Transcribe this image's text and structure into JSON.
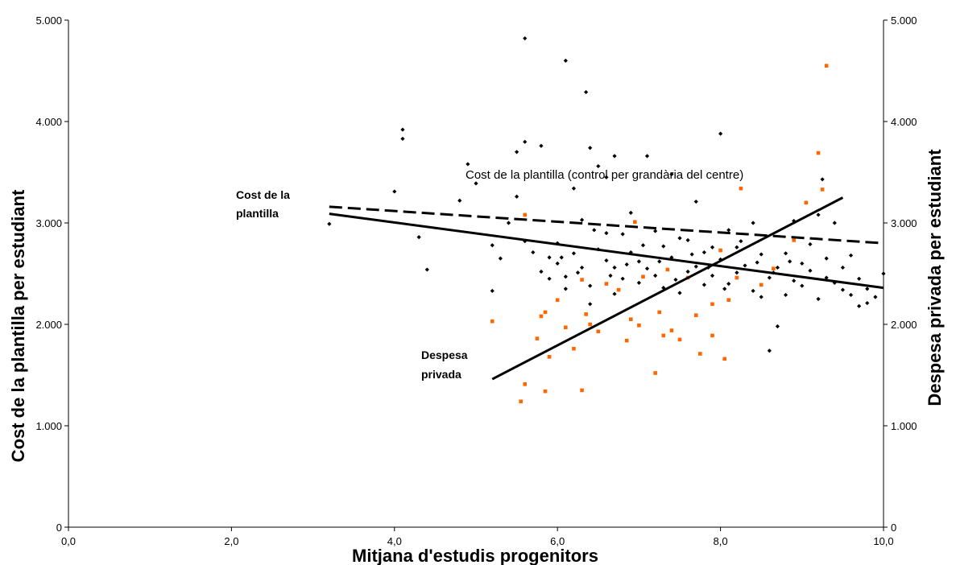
{
  "chart_data": {
    "type": "scatter",
    "title": "",
    "xlabel": "Mitjana d'estudis progenitors",
    "ylabel_left": "Cost de la plantilla per estudiant",
    "ylabel_right": "Despesa privada per estudiant",
    "xlim": [
      0,
      10
    ],
    "ylim": [
      0,
      5000
    ],
    "x_ticks": [
      "0,0",
      "2,0",
      "4,0",
      "6,0",
      "8,0",
      "10,0"
    ],
    "y_ticks_left": [
      "0",
      "1.000",
      "2.000",
      "3.000",
      "4.000",
      "5.000"
    ],
    "y_ticks_right": [
      "0",
      "1.000",
      "2.000",
      "3.000",
      "4.000",
      "5.000"
    ],
    "grid": false,
    "colors": {
      "staff_points": "#000000",
      "private_points": "#ff6600",
      "lines": "#000000"
    },
    "annotations": {
      "staff_line": [
        "Cost de la",
        "plantilla"
      ],
      "private_line": [
        "Despesa",
        "privada"
      ],
      "dashed_line": "Cost de la plantilla (control per grandària del centre)"
    },
    "series": [
      {
        "kind": "scatter",
        "marker": "diamond",
        "color": "#000000",
        "points": [
          [
            3.2,
            2990
          ],
          [
            4.0,
            3310
          ],
          [
            4.1,
            3920
          ],
          [
            4.1,
            3830
          ],
          [
            4.3,
            2860
          ],
          [
            4.4,
            2540
          ],
          [
            4.8,
            3220
          ],
          [
            4.9,
            3580
          ],
          [
            5.0,
            3390
          ],
          [
            5.2,
            2780
          ],
          [
            5.2,
            2330
          ],
          [
            5.3,
            2650
          ],
          [
            5.4,
            3000
          ],
          [
            5.5,
            3260
          ],
          [
            5.5,
            3700
          ],
          [
            5.6,
            3800
          ],
          [
            5.6,
            4820
          ],
          [
            5.6,
            2820
          ],
          [
            5.7,
            2710
          ],
          [
            5.8,
            3760
          ],
          [
            5.8,
            2520
          ],
          [
            5.9,
            2660
          ],
          [
            6.0,
            2600
          ],
          [
            6.1,
            4600
          ],
          [
            6.1,
            2470
          ],
          [
            6.2,
            3340
          ],
          [
            6.3,
            3030
          ],
          [
            6.35,
            4290
          ],
          [
            6.4,
            3740
          ],
          [
            6.4,
            2200
          ],
          [
            6.5,
            3560
          ],
          [
            6.6,
            3450
          ],
          [
            6.6,
            2900
          ],
          [
            6.7,
            3660
          ],
          [
            6.7,
            2560
          ],
          [
            6.8,
            2450
          ],
          [
            6.9,
            3100
          ],
          [
            7.0,
            2620
          ],
          [
            7.1,
            3660
          ],
          [
            7.2,
            2480
          ],
          [
            7.3,
            2770
          ],
          [
            7.4,
            3480
          ],
          [
            7.5,
            2850
          ],
          [
            7.6,
            2520
          ],
          [
            7.7,
            3210
          ],
          [
            7.8,
            2390
          ],
          [
            7.9,
            2760
          ],
          [
            8.0,
            3880
          ],
          [
            8.1,
            2930
          ],
          [
            8.2,
            2510
          ],
          [
            8.4,
            3000
          ],
          [
            8.5,
            2270
          ],
          [
            8.6,
            1740
          ],
          [
            8.7,
            1980
          ],
          [
            8.8,
            2700
          ],
          [
            8.9,
            3020
          ],
          [
            9.0,
            2600
          ],
          [
            9.1,
            2790
          ],
          [
            9.2,
            3080
          ],
          [
            9.25,
            3430
          ],
          [
            9.3,
            2460
          ],
          [
            9.4,
            3000
          ],
          [
            9.5,
            2340
          ],
          [
            9.6,
            2680
          ],
          [
            9.7,
            2180
          ],
          [
            9.8,
            2350
          ],
          [
            9.9,
            2270
          ],
          [
            10.0,
            2500
          ],
          [
            5.9,
            2450
          ],
          [
            6.0,
            2800
          ],
          [
            6.1,
            2350
          ],
          [
            6.2,
            2700
          ],
          [
            6.3,
            2560
          ],
          [
            6.4,
            2380
          ],
          [
            6.5,
            2740
          ],
          [
            6.6,
            2630
          ],
          [
            6.7,
            2300
          ],
          [
            6.8,
            2890
          ],
          [
            6.9,
            2710
          ],
          [
            7.0,
            2410
          ],
          [
            7.1,
            2550
          ],
          [
            7.2,
            2920
          ],
          [
            7.3,
            2360
          ],
          [
            7.4,
            2660
          ],
          [
            7.5,
            2310
          ],
          [
            7.6,
            2830
          ],
          [
            7.7,
            2570
          ],
          [
            7.8,
            2710
          ],
          [
            7.9,
            2480
          ],
          [
            8.0,
            2640
          ],
          [
            8.1,
            2400
          ],
          [
            8.2,
            2760
          ],
          [
            8.3,
            2580
          ],
          [
            8.4,
            2330
          ],
          [
            8.5,
            2690
          ],
          [
            8.6,
            2460
          ],
          [
            8.7,
            2560
          ],
          [
            8.8,
            2290
          ],
          [
            8.9,
            2430
          ],
          [
            9.0,
            2380
          ],
          [
            9.1,
            2530
          ],
          [
            9.2,
            2250
          ],
          [
            9.3,
            2650
          ],
          [
            9.4,
            2410
          ],
          [
            9.5,
            2560
          ],
          [
            9.6,
            2290
          ],
          [
            9.7,
            2450
          ],
          [
            9.8,
            2210
          ],
          [
            6.05,
            2660
          ],
          [
            6.25,
            2510
          ],
          [
            6.45,
            2930
          ],
          [
            6.65,
            2480
          ],
          [
            6.85,
            2590
          ],
          [
            7.05,
            2780
          ],
          [
            7.25,
            2620
          ],
          [
            7.45,
            2440
          ],
          [
            7.65,
            2690
          ],
          [
            7.85,
            2560
          ],
          [
            8.05,
            2350
          ],
          [
            8.25,
            2820
          ],
          [
            8.45,
            2610
          ],
          [
            8.65,
            2510
          ],
          [
            8.85,
            2620
          ]
        ]
      },
      {
        "kind": "scatter",
        "marker": "square",
        "color": "#ff6600",
        "points": [
          [
            5.2,
            2030
          ],
          [
            5.55,
            1240
          ],
          [
            5.6,
            1410
          ],
          [
            5.6,
            3080
          ],
          [
            5.75,
            1860
          ],
          [
            5.8,
            2080
          ],
          [
            5.85,
            2120
          ],
          [
            5.85,
            1340
          ],
          [
            5.9,
            1680
          ],
          [
            6.0,
            2240
          ],
          [
            6.1,
            1970
          ],
          [
            6.2,
            1760
          ],
          [
            6.3,
            2440
          ],
          [
            6.3,
            1350
          ],
          [
            6.35,
            2100
          ],
          [
            6.4,
            2000
          ],
          [
            6.5,
            1930
          ],
          [
            6.6,
            2400
          ],
          [
            6.75,
            2340
          ],
          [
            6.85,
            1840
          ],
          [
            6.9,
            2050
          ],
          [
            6.95,
            3010
          ],
          [
            7.0,
            1990
          ],
          [
            7.05,
            2470
          ],
          [
            7.2,
            1520
          ],
          [
            7.25,
            2120
          ],
          [
            7.3,
            1890
          ],
          [
            7.35,
            2540
          ],
          [
            7.4,
            1940
          ],
          [
            7.5,
            1850
          ],
          [
            7.6,
            2460
          ],
          [
            7.7,
            2090
          ],
          [
            7.75,
            1710
          ],
          [
            7.9,
            1890
          ],
          [
            7.9,
            2200
          ],
          [
            8.0,
            2730
          ],
          [
            8.05,
            1660
          ],
          [
            8.1,
            2240
          ],
          [
            8.2,
            2460
          ],
          [
            8.25,
            3340
          ],
          [
            8.5,
            2390
          ],
          [
            8.65,
            2550
          ],
          [
            8.9,
            2830
          ],
          [
            9.05,
            3200
          ],
          [
            9.2,
            3690
          ],
          [
            9.25,
            3330
          ],
          [
            9.3,
            4550
          ]
        ]
      },
      {
        "kind": "line",
        "style": "solid",
        "points": [
          [
            3.2,
            3090
          ],
          [
            10.0,
            2360
          ]
        ]
      },
      {
        "kind": "line",
        "style": "dashed",
        "points": [
          [
            3.2,
            3160
          ],
          [
            10.0,
            2800
          ]
        ]
      },
      {
        "kind": "line",
        "style": "solid",
        "points": [
          [
            5.2,
            1460
          ],
          [
            9.5,
            3250
          ]
        ]
      }
    ]
  }
}
